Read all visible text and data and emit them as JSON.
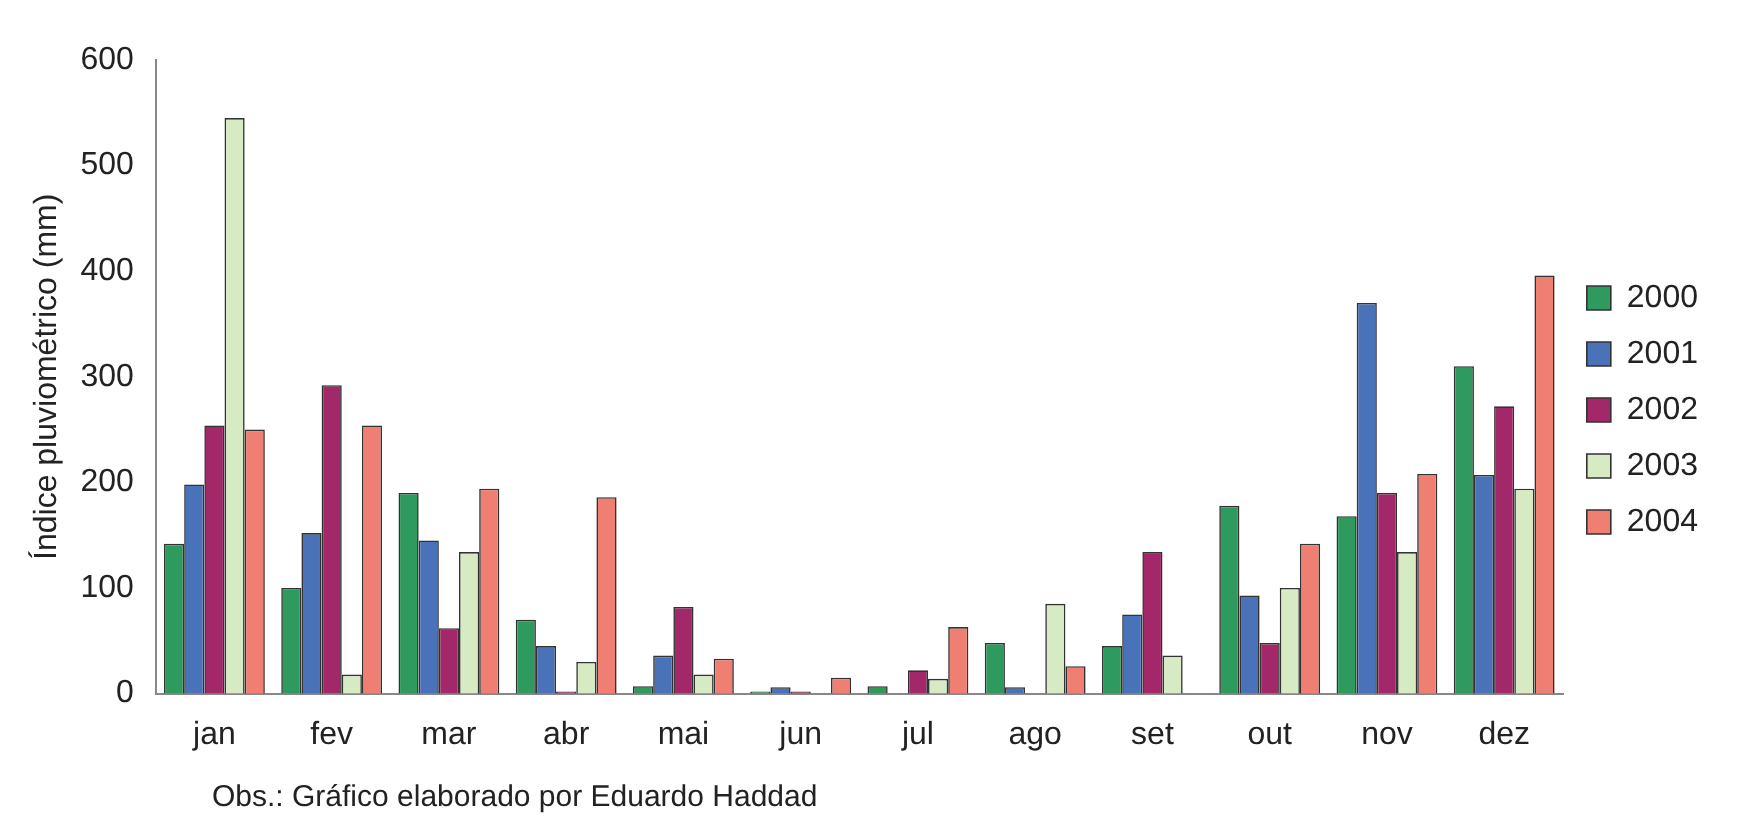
{
  "chart_data": {
    "type": "bar",
    "ylabel": "Índice pluviométrico (mm)",
    "categories": [
      "jan",
      "fev",
      "mar",
      "abr",
      "mai",
      "jun",
      "jul",
      "ago",
      "set",
      "out",
      "nov",
      "dez"
    ],
    "series": [
      {
        "name": "2000",
        "color": "#2e9a5e",
        "values": [
          142,
          100,
          190,
          70,
          7,
          2,
          7,
          48,
          45,
          178,
          168,
          310
        ]
      },
      {
        "name": "2001",
        "color": "#4a72b8",
        "values": [
          198,
          152,
          145,
          45,
          36,
          6,
          0,
          6,
          75,
          93,
          370,
          207
        ]
      },
      {
        "name": "2002",
        "color": "#a3286a",
        "values": [
          254,
          292,
          62,
          2,
          82,
          2,
          22,
          0,
          134,
          48,
          190,
          272
        ]
      },
      {
        "name": "2003",
        "color": "#d6ebc4",
        "values": [
          545,
          18,
          134,
          30,
          18,
          0,
          14,
          85,
          36,
          100,
          134,
          194
        ]
      },
      {
        "name": "2004",
        "color": "#ee7f72",
        "values": [
          250,
          254,
          194,
          186,
          33,
          15,
          63,
          26,
          0,
          142,
          208,
          396
        ]
      }
    ],
    "ylim": [
      0,
      600
    ],
    "yticks": [
      0,
      100,
      200,
      300,
      400,
      500,
      600
    ],
    "grid": false,
    "legend": "right",
    "annotations": [
      "Obs.: Gráfico elaborado por Eduardo Haddad"
    ]
  }
}
